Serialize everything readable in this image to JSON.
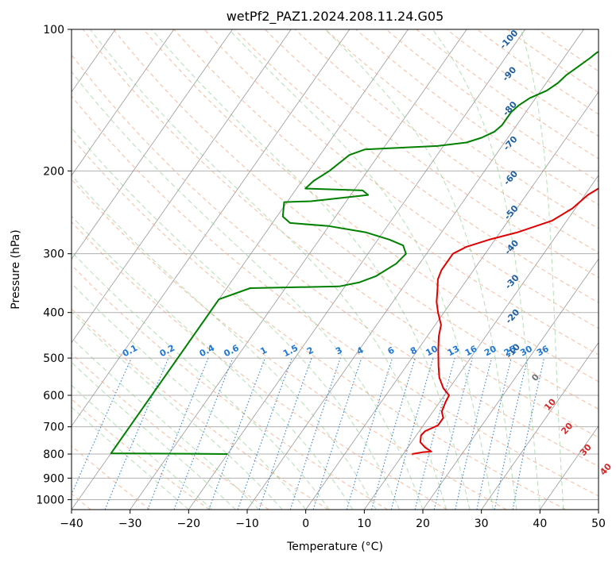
{
  "chart_data": {
    "type": "line",
    "title": "wetPf2_PAZ1.2024.208.11.24.G05",
    "xlabel": "Temperature (°C)",
    "ylabel": "Pressure (hPa)",
    "xlim": [
      -40,
      50
    ],
    "ylim": [
      1050,
      100
    ],
    "y_scale": "log",
    "grid": true,
    "x_ticks": [
      -40,
      -30,
      -20,
      -10,
      0,
      10,
      20,
      30,
      40,
      50
    ],
    "y_ticks": [
      100,
      200,
      300,
      400,
      500,
      600,
      700,
      800,
      900,
      1000
    ],
    "dry_adiabat_labels": [
      "-100",
      "-90",
      "-80",
      "-70",
      "-60",
      "-50",
      "-40",
      "-30",
      "-20",
      "-10",
      "0",
      "10",
      "20",
      "30",
      "40"
    ],
    "mixing_ratio_labels": [
      "0.1",
      "0.2",
      "0.4",
      "0.6",
      "1",
      "1.5",
      "2",
      "3",
      "4",
      "6",
      "8",
      "10",
      "13",
      "16",
      "20",
      "25",
      "30",
      "36"
    ],
    "series": [
      {
        "color": "#e00000",
        "points": [
          [
            11.5,
            800
          ],
          [
            13.0,
            793
          ],
          [
            14.5,
            790
          ],
          [
            13.0,
            775
          ],
          [
            11.5,
            755
          ],
          [
            10.8,
            730
          ],
          [
            11.0,
            715
          ],
          [
            12.5,
            695
          ],
          [
            12.5,
            670
          ],
          [
            11.5,
            650
          ],
          [
            11.0,
            620
          ],
          [
            10.8,
            600
          ],
          [
            9.0,
            580
          ],
          [
            7.0,
            550
          ],
          [
            5.5,
            520
          ],
          [
            3.5,
            480
          ],
          [
            2.0,
            450
          ],
          [
            1.0,
            425
          ],
          [
            -1.0,
            400
          ],
          [
            -2.5,
            380
          ],
          [
            -4.0,
            355
          ],
          [
            -5.0,
            340
          ],
          [
            -5.5,
            325
          ],
          [
            -5.5,
            300
          ],
          [
            -4.0,
            290
          ],
          [
            -1.0,
            280
          ],
          [
            3.0,
            270
          ],
          [
            7.5,
            255
          ],
          [
            9.5,
            240
          ],
          [
            10.5,
            225
          ],
          [
            12.0,
            215
          ],
          [
            13.5,
            205
          ],
          [
            14.5,
            195
          ],
          [
            15.0,
            185
          ],
          [
            15.0,
            175
          ],
          [
            14.5,
            165
          ],
          [
            14.0,
            160
          ],
          [
            14.3,
            150
          ],
          [
            15.5,
            143
          ],
          [
            17.0,
            136
          ],
          [
            17.8,
            130
          ],
          [
            18.6,
            125
          ],
          [
            19.0,
            120
          ],
          [
            20.0,
            115
          ],
          [
            21.0,
            110
          ],
          [
            22.0,
            105
          ],
          [
            22.5,
            100
          ]
        ]
      },
      {
        "color": "#008000",
        "points": [
          [
            -20.0,
            800
          ],
          [
            -40.0,
            797
          ],
          [
            -40.0,
            375
          ],
          [
            -36.0,
            355
          ],
          [
            -21.0,
            352
          ],
          [
            -18.0,
            345
          ],
          [
            -16.0,
            335
          ],
          [
            -14.0,
            315
          ],
          [
            -13.5,
            300
          ],
          [
            -15.0,
            288
          ],
          [
            -18.0,
            280
          ],
          [
            -23.0,
            270
          ],
          [
            -30.0,
            262
          ],
          [
            -37.0,
            258
          ],
          [
            -39.0,
            250
          ],
          [
            -40.5,
            233
          ],
          [
            -36.0,
            232
          ],
          [
            -27.0,
            225
          ],
          [
            -28.5,
            220
          ],
          [
            -38.5,
            218
          ],
          [
            -38.0,
            210
          ],
          [
            -36.5,
            200
          ],
          [
            -35.5,
            190
          ],
          [
            -35.0,
            185
          ],
          [
            -33.0,
            180
          ],
          [
            -29.0,
            179
          ],
          [
            -21.0,
            177
          ],
          [
            -16.5,
            174
          ],
          [
            -14.5,
            170
          ],
          [
            -13.0,
            165
          ],
          [
            -12.5,
            160
          ],
          [
            -12.5,
            150
          ],
          [
            -12.0,
            145
          ],
          [
            -11.0,
            140
          ],
          [
            -9.0,
            135
          ],
          [
            -8.0,
            130
          ],
          [
            -7.5,
            125
          ],
          [
            -6.5,
            120
          ],
          [
            -5.5,
            115
          ],
          [
            -5.0,
            112
          ],
          [
            -4.0,
            110
          ],
          [
            -3.0,
            106
          ],
          [
            -2.0,
            103
          ],
          [
            -1.5,
            100
          ]
        ]
      }
    ]
  },
  "colors": {
    "temperature": "#e00000",
    "dewpoint": "#008000",
    "dry_adiabat": "#f4a582",
    "moist_adiabat": "#78c679",
    "mixing_ratio": "#1f78d4",
    "isotherm": "#808080",
    "dry_label": "#1f5f9f",
    "warm_label": "#d62728"
  }
}
